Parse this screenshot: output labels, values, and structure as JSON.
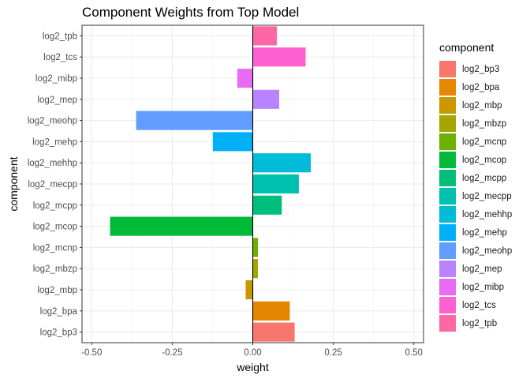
{
  "chart_data": {
    "type": "bar",
    "orientation": "horizontal",
    "title": "Component Weights from Top Model",
    "xlabel": "weight",
    "ylabel": "component",
    "xlim": [
      -0.53,
      0.53
    ],
    "x_ticks": [
      -0.5,
      -0.25,
      0.0,
      0.25,
      0.5
    ],
    "x_tick_labels": [
      "-0.50",
      "-0.25",
      "0.00",
      "0.25",
      "0.50"
    ],
    "grid": true,
    "legend_title": "component",
    "legend_position": "right",
    "categories": [
      "log2_bp3",
      "log2_bpa",
      "log2_mbp",
      "log2_mbzp",
      "log2_mcnp",
      "log2_mcop",
      "log2_mcpp",
      "log2_mecpp",
      "log2_mehhp",
      "log2_mehp",
      "log2_meohp",
      "log2_mep",
      "log2_mibp",
      "log2_tcs",
      "log2_tpb"
    ],
    "values": [
      0.13,
      0.115,
      -0.022,
      0.016,
      0.016,
      -0.443,
      0.09,
      0.143,
      0.18,
      -0.124,
      -0.362,
      0.082,
      -0.048,
      0.164,
      0.075
    ],
    "colors": [
      "#F8766D",
      "#E58700",
      "#C99800",
      "#A3A500",
      "#6BB100",
      "#00BA38",
      "#00BF7D",
      "#00C0AF",
      "#00BCD8",
      "#00B0F6",
      "#619CFF",
      "#B983FF",
      "#E76BF3",
      "#FD61D1",
      "#FF67A4"
    ]
  }
}
